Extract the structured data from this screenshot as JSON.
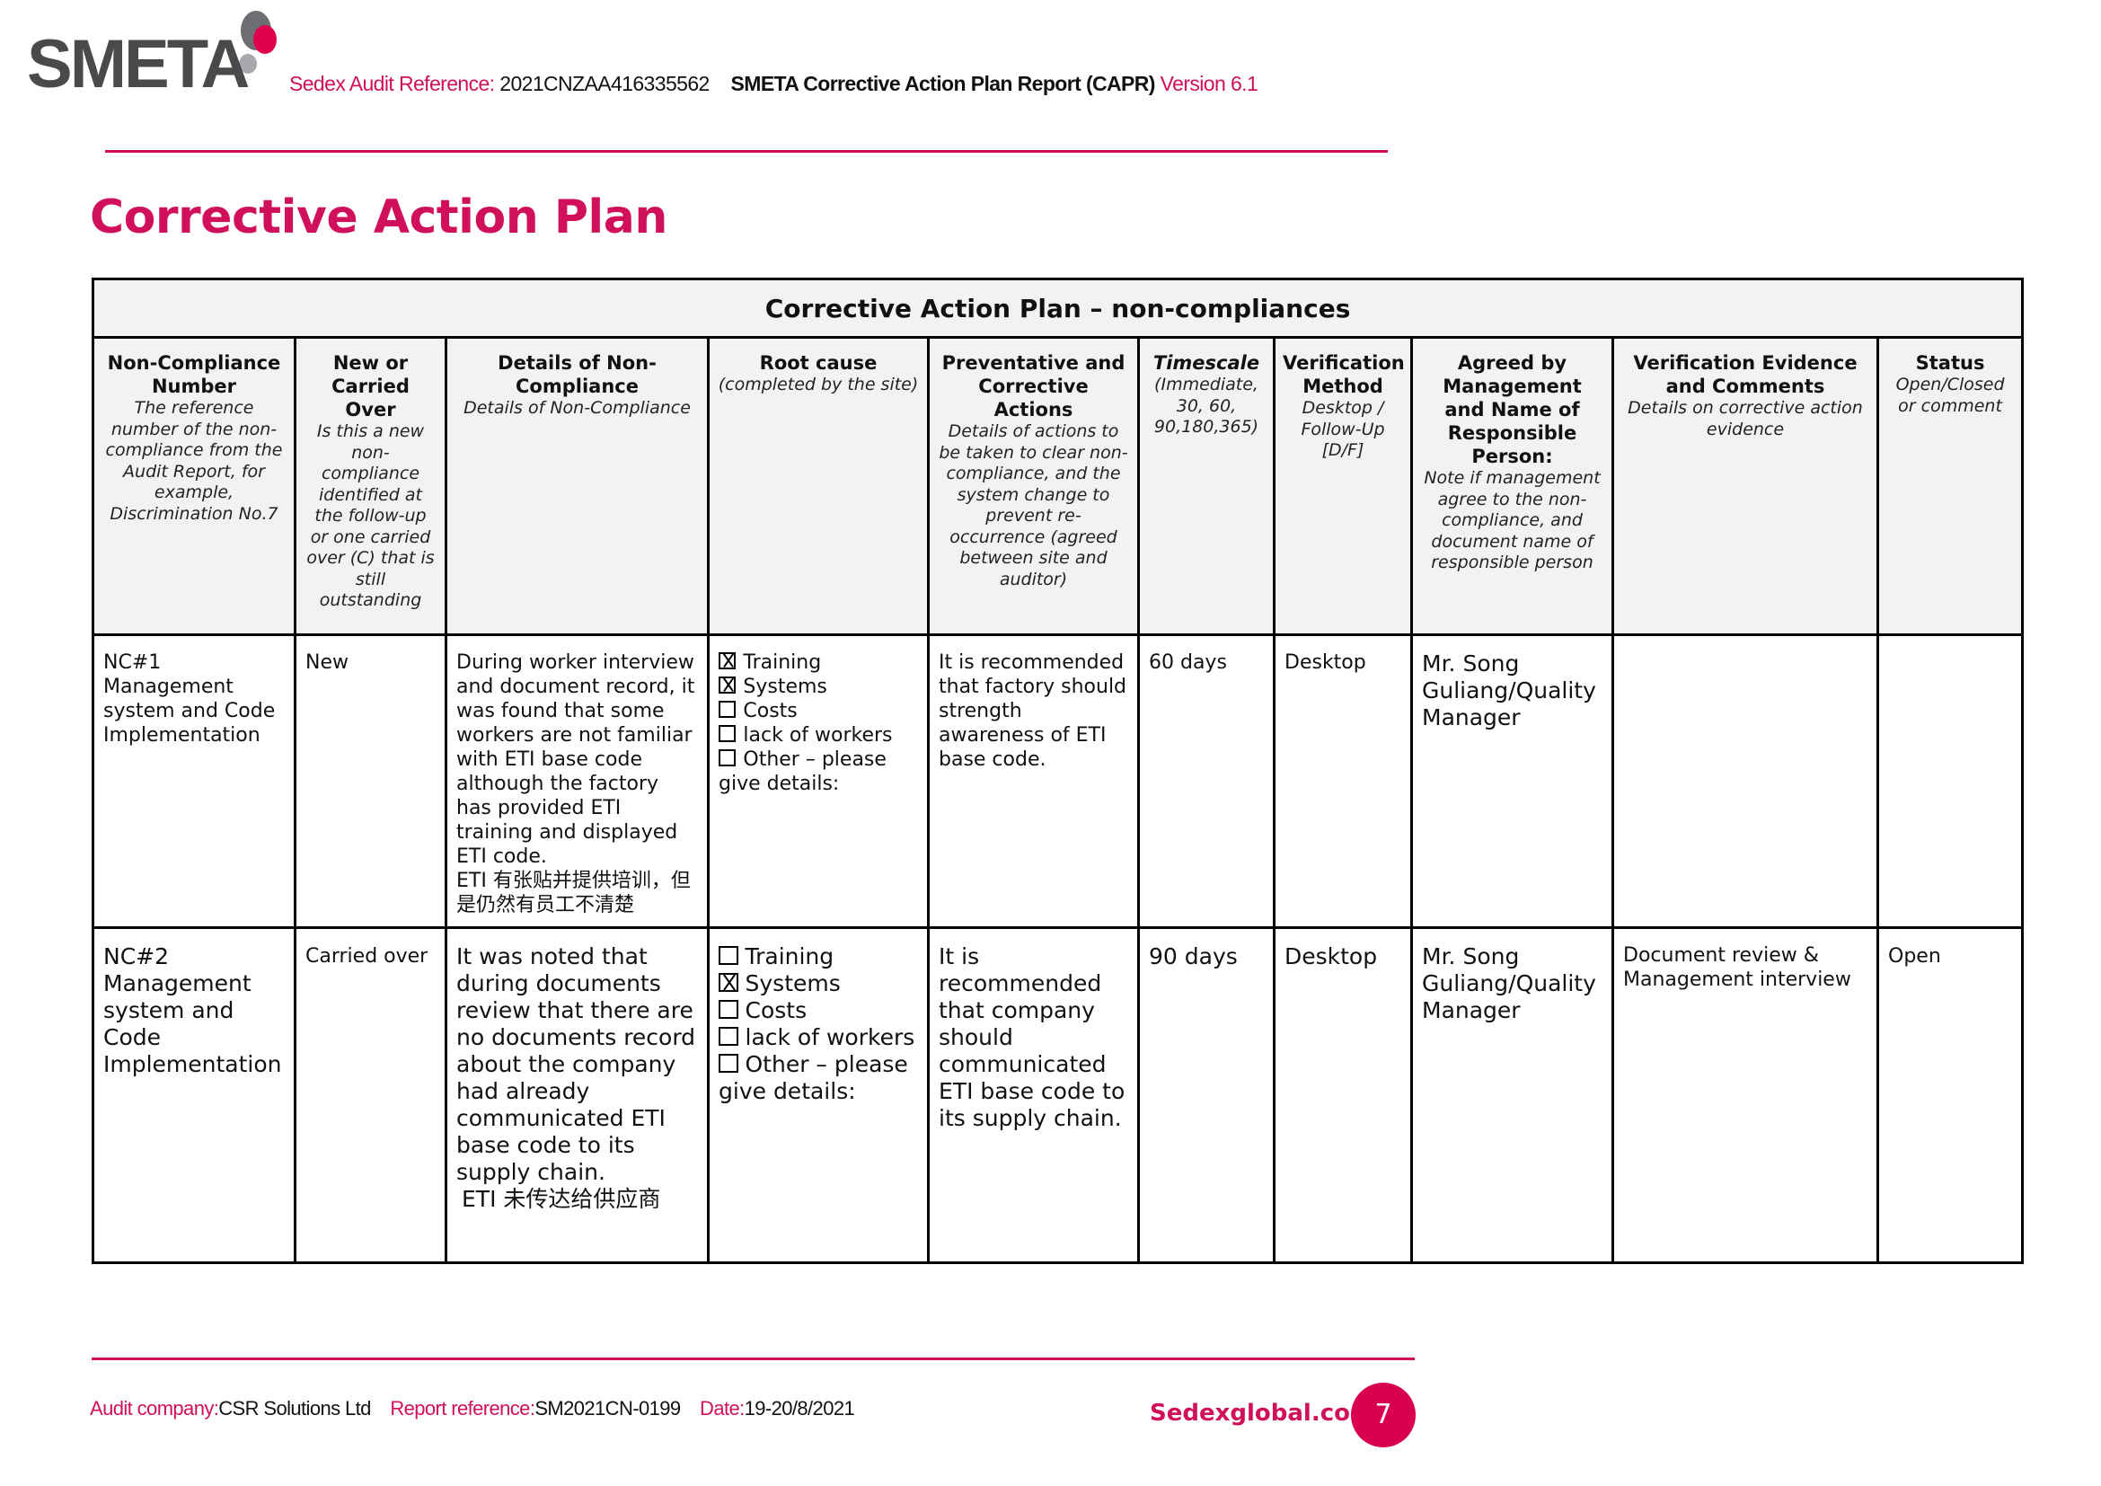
{
  "brand": {
    "logo_text": "SMETA",
    "accent_color": "#d0105a"
  },
  "header": {
    "audit_ref_label": "Sedex Audit Reference:",
    "audit_ref_value": "2021CNZAA416335562",
    "report_title": "SMETA Corrective Action Plan Report (CAPR)",
    "version": "Version 6.1"
  },
  "page_title": "Corrective Action Plan",
  "table": {
    "caption": "Corrective Action Plan – non-compliances",
    "columns": [
      {
        "title": "Non-Compliance Number",
        "sub": "The reference number of the non-compliance from the Audit Report, for example, Discrimination No.7"
      },
      {
        "title": "New or Carried Over",
        "sub": "Is this a new non-compliance identified at the follow-up or one carried over (C) that is still outstanding"
      },
      {
        "title": "Details of Non-Compliance",
        "sub": "Details of Non-Compliance"
      },
      {
        "title": "Root cause",
        "sub": "(completed by the site)"
      },
      {
        "title": "Preventative and Corrective Actions",
        "sub": "Details of actions to be taken to clear non-compliance, and the system change to prevent re- occurrence (agreed between site and auditor)"
      },
      {
        "title": "Timescale",
        "sub": "(Immediate, 30, 60, 90,180,365)"
      },
      {
        "title": "Verification Method",
        "sub": "Desktop / Follow-Up [D/F]"
      },
      {
        "title": "Agreed by Management and Name of Responsible Person:",
        "sub": "Note if management agree to the non-compliance, and document name of responsible person"
      },
      {
        "title": "Verification Evidence and Comments",
        "sub": "Details on corrective action evidence"
      },
      {
        "title": "Status",
        "sub": "Open/Closed or comment"
      }
    ],
    "rows": [
      {
        "nc_number": "NC#1",
        "nc_area": "Management system and Code Implementation",
        "new_or_carried": "New",
        "details": "During worker interview and document record, it was found that some workers are not familiar with ETI base code although the factory has provided ETI training and displayed ETI code.",
        "details_cn": "ETI 有张贴并提供培训，但是仍然有员工不清楚",
        "root_cause": [
          {
            "label": "Training",
            "checked": true
          },
          {
            "label": "Systems",
            "checked": true
          },
          {
            "label": "Costs",
            "checked": false
          },
          {
            "label": "lack of workers",
            "checked": false
          },
          {
            "label": "Other – please give details:",
            "checked": false
          }
        ],
        "actions": "It is recommended that factory should strength awareness of ETI base code.",
        "timescale": "60 days",
        "verification_method": "Desktop",
        "agreed_by": "Mr. Song Guliang/Quality Manager",
        "evidence": "",
        "status": ""
      },
      {
        "nc_number": "NC#2",
        "nc_area": "Management system and Code Implementation",
        "new_or_carried": "Carried over",
        "details": "It was noted that during documents review that there are no documents record about the company had already communicated ETI base code to its supply chain.",
        "details_cn": "ETI 未传达给供应商",
        "root_cause": [
          {
            "label": "Training",
            "checked": false
          },
          {
            "label": "Systems",
            "checked": true
          },
          {
            "label": "Costs",
            "checked": false
          },
          {
            "label": "lack of workers",
            "checked": false
          },
          {
            "label": "Other – please give details:",
            "checked": false
          }
        ],
        "actions": "It is recommended that company should communicated ETI base code to its supply chain.",
        "timescale": "90 days",
        "verification_method": "Desktop",
        "agreed_by": "Mr. Song Guliang/Quality Manager",
        "evidence": "Document review & Management interview",
        "status": "Open"
      }
    ]
  },
  "footer": {
    "audit_company_label": "Audit company:",
    "audit_company": "CSR Solutions Ltd",
    "report_ref_label": "Report reference:",
    "report_ref": "SM2021CN-0199",
    "date_label": "Date:",
    "date": "19-20/8/2021",
    "website": "Sedexglobal.com",
    "page_number": "7"
  }
}
